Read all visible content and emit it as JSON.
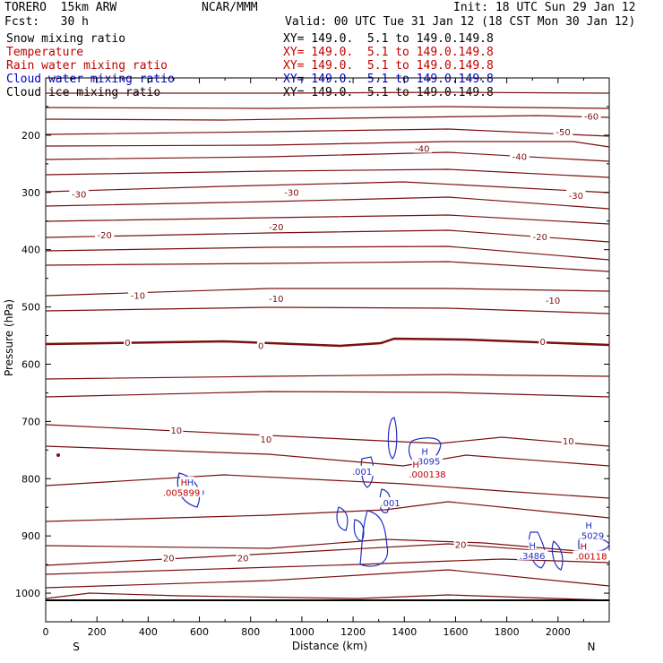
{
  "header": {
    "model": "TORERO  15km ARW",
    "center": "NCAR/MMM",
    "init": "Init: 18 UTC Sun 29 Jan 12",
    "fcst": "Fcst:   30 h",
    "valid": "Valid: 00 UTC Tue 31 Jan 12 (18 CST Mon 30 Jan 12)"
  },
  "fields": [
    {
      "name": "Snow mixing ratio",
      "xy": "XY= 149.0.  5.1 to 149.0.149.8",
      "color": "#000000"
    },
    {
      "name": "Temperature",
      "xy": "XY= 149.0.  5.1 to 149.0.149.8",
      "color": "#c00000"
    },
    {
      "name": "Rain water mixing ratio",
      "xy": "XY= 149.0.  5.1 to 149.0.149.8",
      "color": "#c00000"
    },
    {
      "name": "Cloud water mixing ratio",
      "xy": "XY= 149.0.  5.1 to 149.0.149.8",
      "color": "#0000c0"
    },
    {
      "name": "Cloud ice mixing ratio",
      "xy": "XY= 149.0.  5.1 to 149.0.149.8",
      "color": "#000000"
    }
  ],
  "chart_data": {
    "type": "contour",
    "xlabel": "Distance (km)",
    "ylabel": "Pressure (hPa)",
    "xlim": [
      0,
      2200
    ],
    "ylim": [
      1050,
      100
    ],
    "x_ticks": [
      0,
      200,
      400,
      600,
      800,
      1000,
      1200,
      1400,
      1600,
      1800,
      2000
    ],
    "y_ticks": [
      200,
      300,
      400,
      500,
      600,
      700,
      800,
      900,
      1000
    ],
    "left_end_label": "S",
    "right_end_label": "N",
    "temperature_contour_color": "#7a1010",
    "cloud_water_color": "#2030c0",
    "rain_color": "#c00000",
    "temperature_labels": [
      {
        "text": "-60",
        "x": 2130,
        "p": 170
      },
      {
        "text": "-50",
        "x": 2020,
        "p": 197
      },
      {
        "text": "-40",
        "x": 1470,
        "p": 226
      },
      {
        "text": "-40",
        "x": 1850,
        "p": 240
      },
      {
        "text": "-30",
        "x": 130,
        "p": 306
      },
      {
        "text": "-30",
        "x": 960,
        "p": 303
      },
      {
        "text": "-30",
        "x": 2070,
        "p": 308
      },
      {
        "text": "-20",
        "x": 230,
        "p": 377
      },
      {
        "text": "-20",
        "x": 900,
        "p": 363
      },
      {
        "text": "-20",
        "x": 1930,
        "p": 380
      },
      {
        "text": "-10",
        "x": 360,
        "p": 483
      },
      {
        "text": "-10",
        "x": 900,
        "p": 488
      },
      {
        "text": "-10",
        "x": 1980,
        "p": 491
      },
      {
        "text": "0",
        "x": 320,
        "p": 565
      },
      {
        "text": "0",
        "x": 840,
        "p": 570
      },
      {
        "text": "0",
        "x": 1940,
        "p": 563
      },
      {
        "text": "10",
        "x": 510,
        "p": 718
      },
      {
        "text": "10",
        "x": 860,
        "p": 734
      },
      {
        "text": "10",
        "x": 2040,
        "p": 737
      },
      {
        "text": "20",
        "x": 480,
        "p": 941
      },
      {
        "text": "20",
        "x": 770,
        "p": 941
      },
      {
        "text": "20",
        "x": 1620,
        "p": 918
      }
    ],
    "cloud_labels": [
      {
        "text": ".001",
        "x": 1235,
        "p": 790
      },
      {
        "text": ".001",
        "x": 1345,
        "p": 845
      },
      {
        "text": "H",
        "x": 1480,
        "p": 755
      },
      {
        "text": ".3095",
        "x": 1490,
        "p": 772
      },
      {
        "text": "H",
        "x": 1900,
        "p": 919
      },
      {
        "text": ".3486",
        "x": 1900,
        "p": 937
      },
      {
        "text": "H",
        "x": 2120,
        "p": 884
      },
      {
        "text": ".5029",
        "x": 2130,
        "p": 902
      },
      {
        "text": "H",
        "x": 565,
        "p": 809
      },
      {
        "text": ".0589",
        "x": 570,
        "p": 827
      }
    ],
    "rain_labels": [
      {
        "text": "H",
        "x": 540,
        "p": 809
      },
      {
        "text": ".005899",
        "x": 530,
        "p": 827
      },
      {
        "text": "H",
        "x": 1445,
        "p": 778
      },
      {
        "text": ".000138",
        "x": 1490,
        "p": 795
      },
      {
        "text": "H",
        "x": 2100,
        "p": 921
      },
      {
        "text": ".00118",
        "x": 2130,
        "p": 938
      }
    ]
  }
}
